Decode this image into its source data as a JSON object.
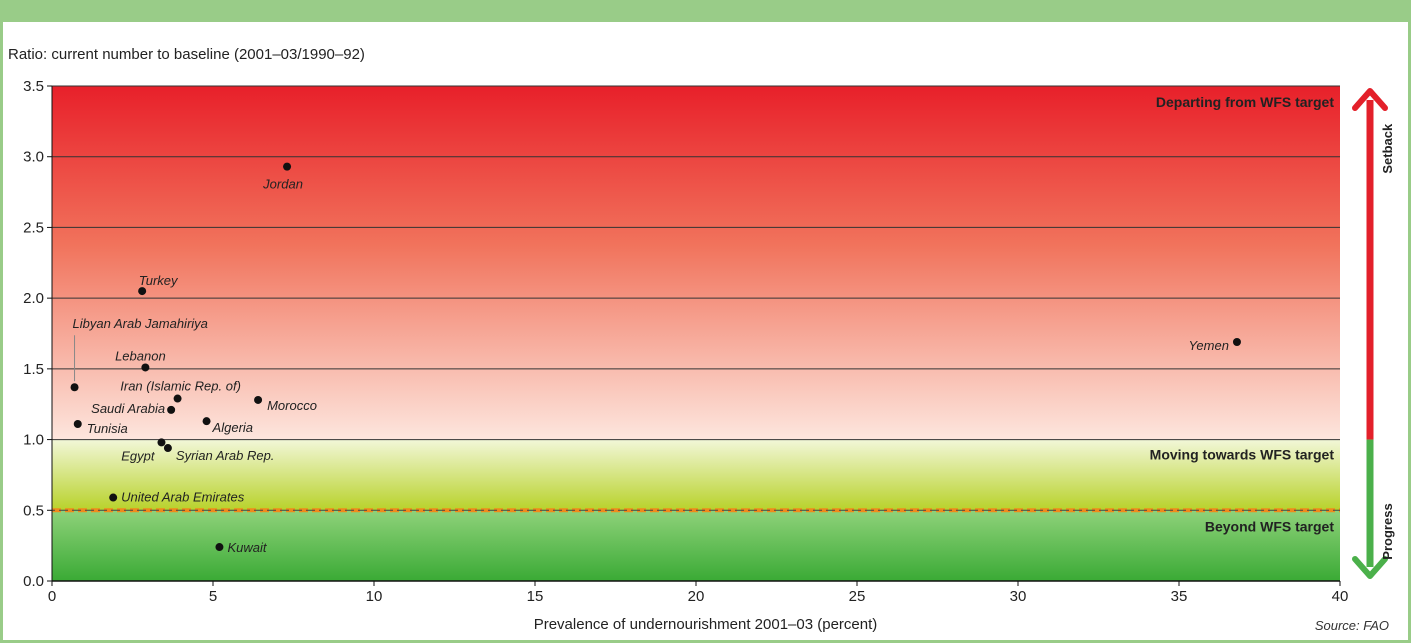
{
  "chart_data": {
    "type": "scatter",
    "ylabel": "Ratio: current number to baseline (2001–03/1990–92)",
    "xlabel": "Prevalence of undernourishment 2001–03 (percent)",
    "source": "Source: FAO",
    "xlim": [
      0,
      40
    ],
    "ylim": [
      0,
      3.5
    ],
    "x_ticks": [
      0,
      5,
      10,
      15,
      20,
      25,
      30,
      35,
      40
    ],
    "y_ticks": [
      0.0,
      0.5,
      1.0,
      1.5,
      2.0,
      2.5,
      3.0,
      3.5
    ],
    "x_tick_labels": [
      "0",
      "5",
      "10",
      "15",
      "20",
      "25",
      "30",
      "35",
      "40"
    ],
    "y_tick_labels": [
      "0.0",
      "0.5",
      "1.0",
      "1.5",
      "2.0",
      "2.5",
      "3.0",
      "3.5"
    ],
    "reference_line": 0.5,
    "zones": [
      {
        "label": "Departing from WFS target",
        "from": 1.0,
        "to": 3.5
      },
      {
        "label": "Moving towards WFS target",
        "from": 0.5,
        "to": 1.0
      },
      {
        "label": "Beyond WFS target",
        "from": 0.0,
        "to": 0.5
      }
    ],
    "arrows": {
      "up": "Setback",
      "down": "Progress"
    },
    "points": [
      {
        "name": "Jordan",
        "x": 7.3,
        "y": 2.93
      },
      {
        "name": "Turkey",
        "x": 2.8,
        "y": 2.05
      },
      {
        "name": "Libyan Arab Jamahiriya",
        "x": 0.7,
        "y": 1.37
      },
      {
        "name": "Lebanon",
        "x": 2.9,
        "y": 1.51
      },
      {
        "name": "Iran (Islamic Rep. of)",
        "x": 3.9,
        "y": 1.29
      },
      {
        "name": "Morocco",
        "x": 6.4,
        "y": 1.28
      },
      {
        "name": "Saudi Arabia",
        "x": 3.7,
        "y": 1.21
      },
      {
        "name": "Algeria",
        "x": 4.8,
        "y": 1.13
      },
      {
        "name": "Tunisia",
        "x": 0.8,
        "y": 1.11
      },
      {
        "name": "Egypt",
        "x": 3.4,
        "y": 0.98
      },
      {
        "name": "Syrian Arab Rep.",
        "x": 3.6,
        "y": 0.94
      },
      {
        "name": "United Arab Emirates",
        "x": 1.9,
        "y": 0.59
      },
      {
        "name": "Kuwait",
        "x": 5.2,
        "y": 0.24
      },
      {
        "name": "Yemen",
        "x": 36.8,
        "y": 1.69
      }
    ],
    "colors": {
      "zone_red_top": "#e8202a",
      "zone_red_bottom": "#fde6de",
      "zone_yellow_top": "#f2f7d8",
      "zone_yellow_bottom": "#b8d22a",
      "zone_green_top": "#8fd27a",
      "zone_green_bottom": "#3aaa35",
      "reference": "#f08a1c",
      "arrow_red": "#e3202a",
      "arrow_green": "#4bb04a",
      "frame": "#99cc88"
    }
  }
}
